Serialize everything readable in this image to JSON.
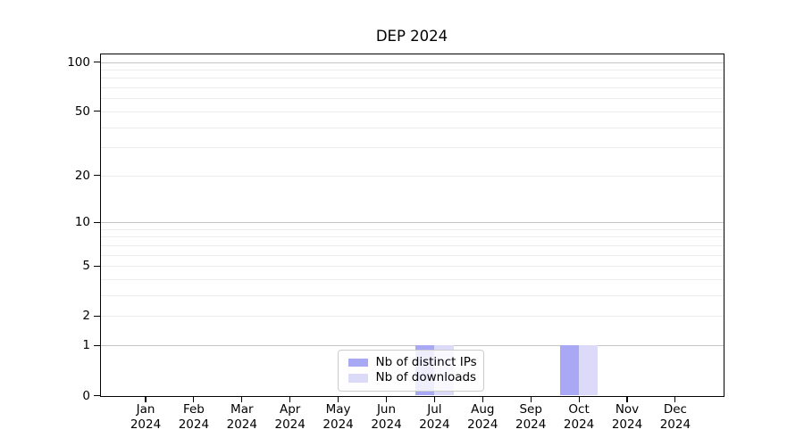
{
  "chart_data": {
    "type": "bar",
    "title": "DEP 2024",
    "categories": [
      "Jan 2024",
      "Feb 2024",
      "Mar 2024",
      "Apr 2024",
      "May 2024",
      "Jun 2024",
      "Jul 2024",
      "Aug 2024",
      "Sep 2024",
      "Oct 2024",
      "Nov 2024",
      "Dec 2024"
    ],
    "series": [
      {
        "name": "Nb of distinct IPs",
        "color": "#a9a8f4",
        "values": [
          0,
          0,
          0,
          0,
          0,
          0,
          1,
          0,
          0,
          1,
          0,
          0
        ]
      },
      {
        "name": "Nb of downloads",
        "color": "#dbdaf9",
        "values": [
          0,
          0,
          0,
          0,
          0,
          0,
          1,
          0,
          0,
          1,
          0,
          0
        ]
      }
    ],
    "y_axis": {
      "scale": "log10(1+value)",
      "ticks": [
        0,
        1,
        2,
        5,
        10,
        20,
        50,
        100
      ],
      "range": [
        0,
        110
      ],
      "major_gridlines": [
        1,
        10,
        100
      ],
      "minor_gridlines": [
        2,
        3,
        4,
        5,
        6,
        7,
        8,
        9,
        20,
        30,
        40,
        50,
        60,
        70,
        80,
        90
      ]
    },
    "x_axis": {
      "label_year_on_second_line": true
    },
    "legend": {
      "position": "bottom-center",
      "background": "rgba(255,255,255,0.8)",
      "border_color": "#cccccc"
    },
    "grid": true,
    "colors": {
      "axis": "#000000",
      "grid_minor": "#ececec",
      "grid_major": "#c4c4c4",
      "background": "#ffffff"
    }
  }
}
